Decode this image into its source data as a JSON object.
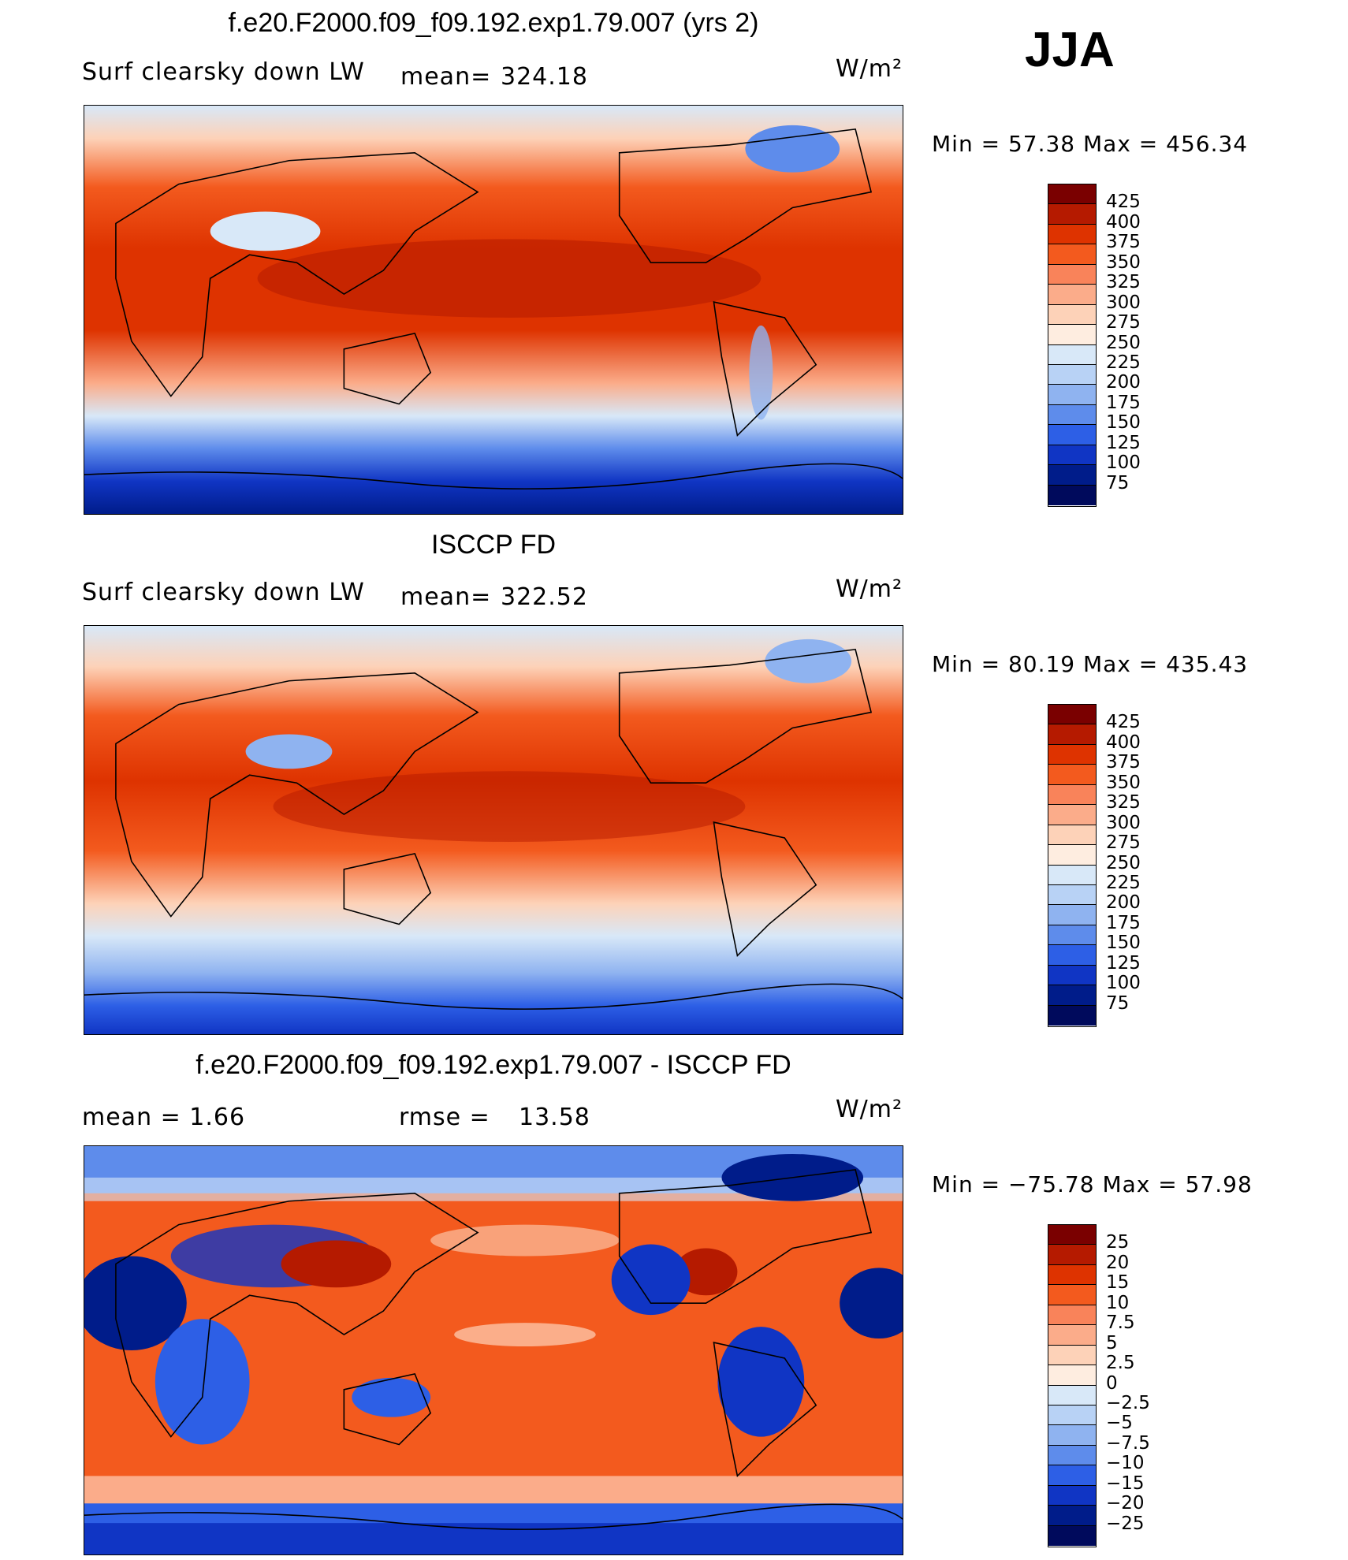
{
  "season": "JJA",
  "panels": [
    {
      "title": "f.e20.F2000.f09_f09.192.exp1.79.007 (yrs 2)",
      "left_label": "Surf clearsky down LW",
      "stat_label": "mean=",
      "stat_value": "324.18",
      "units": "W/m²",
      "min_max": "Min =   57.38 Max = 456.34",
      "levels": [
        "425",
        "400",
        "375",
        "350",
        "325",
        "300",
        "275",
        "250",
        "225",
        "200",
        "175",
        "150",
        "125",
        "100",
        "75"
      ]
    },
    {
      "title": "ISCCP FD",
      "left_label": "Surf clearsky down LW",
      "stat_label": "mean=",
      "stat_value": "322.52",
      "units": "W/m²",
      "min_max": "Min =   80.19 Max = 435.43",
      "levels": [
        "425",
        "400",
        "375",
        "350",
        "325",
        "300",
        "275",
        "250",
        "225",
        "200",
        "175",
        "150",
        "125",
        "100",
        "75"
      ]
    },
    {
      "title": "f.e20.F2000.f09_f09.192.exp1.79.007 - ISCCP FD",
      "left_label": "mean =     1.66",
      "stat_label": "rmse =",
      "stat_value": "13.58",
      "units": "W/m²",
      "min_max": "Min = −75.78 Max =   57.98",
      "levels": [
        "25",
        "20",
        "15",
        "10",
        "7.5",
        "5",
        "2.5",
        "0",
        "−2.5",
        "−5",
        "−7.5",
        "−10",
        "−15",
        "−20",
        "−25"
      ]
    }
  ],
  "colorbar_colors": [
    "#7a0000",
    "#b51a00",
    "#de3300",
    "#f35a1e",
    "#f9835a",
    "#fbac8a",
    "#fdd2b8",
    "#feede0",
    "#d8e8f8",
    "#b8d2f5",
    "#8fb3f0",
    "#5e8ceb",
    "#2d5fe6",
    "#1035c4",
    "#001c8a",
    "#000a5c"
  ],
  "icons": {
    "map": "world-map-contour"
  }
}
